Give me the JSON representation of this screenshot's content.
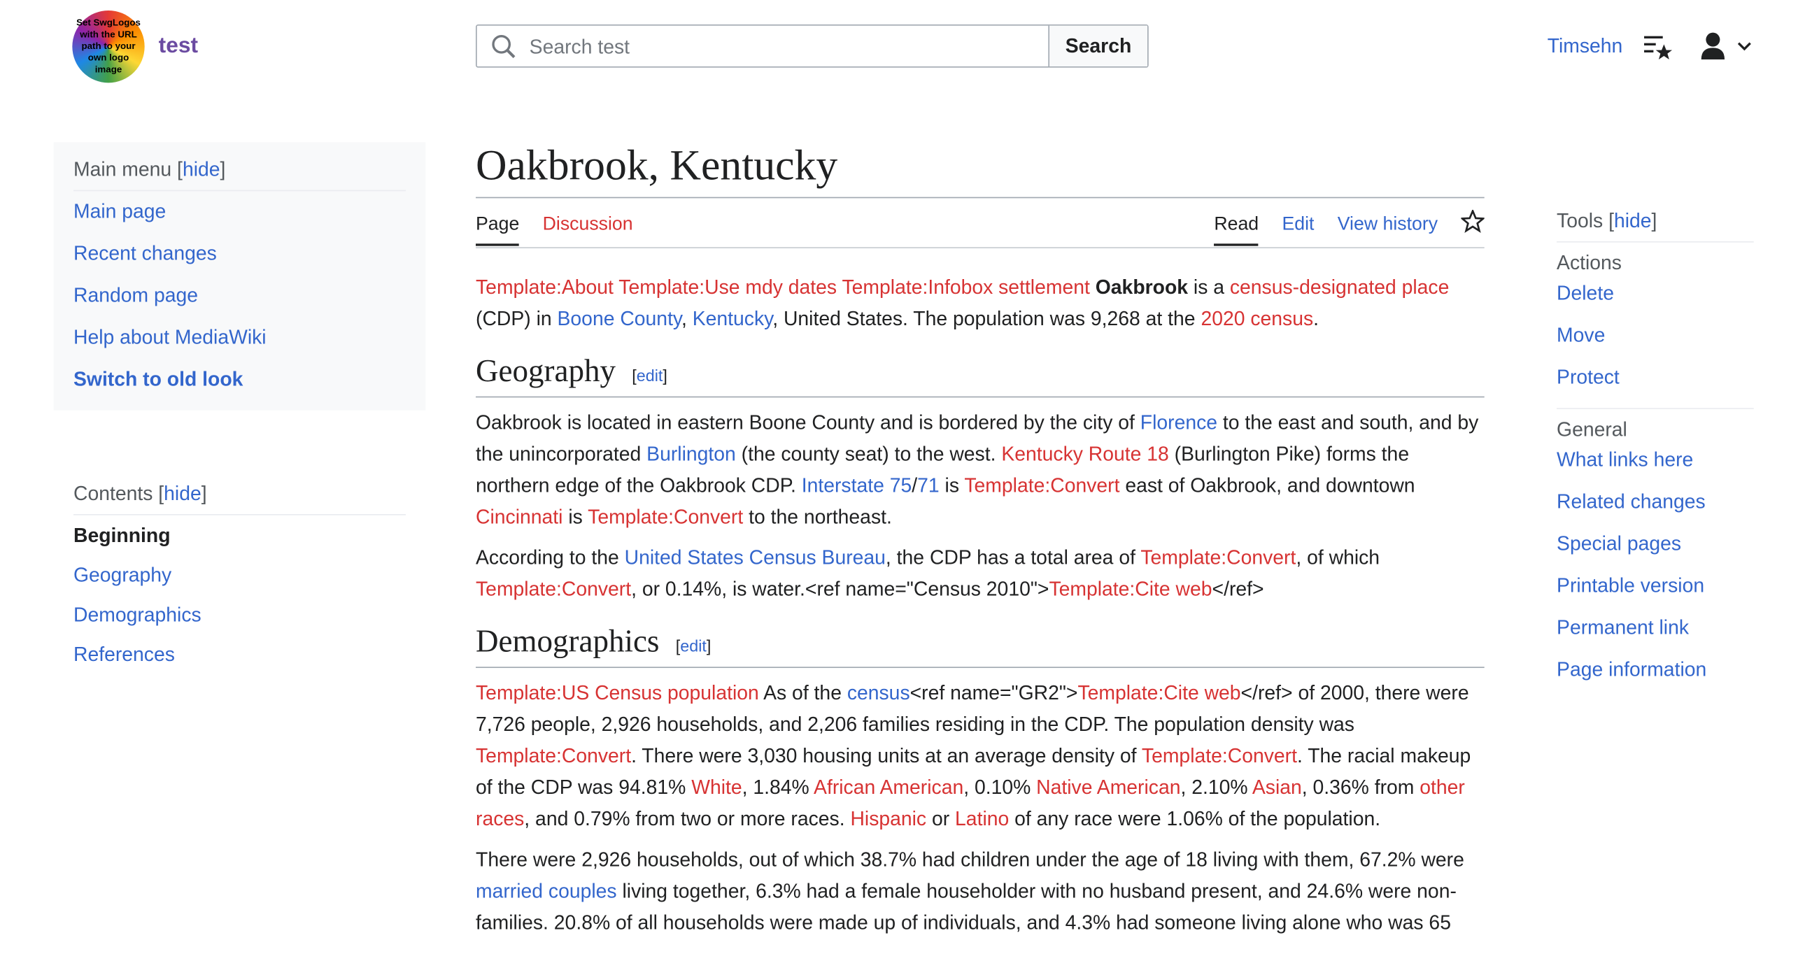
{
  "header": {
    "logo_text": "Set SwgLogos with the URL path to your own logo image",
    "site_name": "test",
    "search_placeholder": "Search test",
    "search_button": "Search",
    "user": "Timsehn"
  },
  "main_menu": {
    "heading": [
      "Main menu ",
      "[",
      {
        "t": "hide",
        "k": "blue"
      },
      "]"
    ],
    "items": [
      {
        "t": "Main page",
        "k": "blue"
      },
      {
        "t": "Recent changes",
        "k": "blue"
      },
      {
        "t": "Random page",
        "k": "blue"
      },
      {
        "t": "Help about MediaWiki",
        "k": "blue"
      },
      {
        "t": "Switch to old look",
        "k": "blue-bold"
      }
    ]
  },
  "contents": {
    "heading": [
      "Contents ",
      "[",
      {
        "t": "hide",
        "k": "blue"
      },
      "]"
    ],
    "items": [
      {
        "t": "Beginning",
        "k": "bold"
      },
      {
        "t": "Geography",
        "k": "blue"
      },
      {
        "t": "Demographics",
        "k": "blue"
      },
      {
        "t": "References",
        "k": "blue"
      }
    ]
  },
  "article": {
    "title": "Oakbrook, Kentucky",
    "tabs_left": [
      {
        "t": "Page",
        "k": "selected"
      },
      {
        "t": "Discussion",
        "k": "red"
      }
    ],
    "tabs_right": [
      {
        "t": "Read",
        "k": "selected"
      },
      {
        "t": "Edit",
        "k": "blue"
      },
      {
        "t": "View history",
        "k": "blue"
      }
    ],
    "blocks": [
      {
        "p": [
          {
            "t": "Template:About",
            "k": "red"
          },
          " ",
          {
            "t": "Template:Use mdy dates",
            "k": "red"
          },
          " ",
          {
            "t": "Template:Infobox settlement",
            "k": "red"
          },
          " ",
          {
            "t": "Oakbrook",
            "k": "bold"
          },
          " is a ",
          {
            "t": "census-designated place",
            "k": "red"
          },
          " (CDP) in ",
          {
            "t": "Boone County",
            "k": "blue"
          },
          ", ",
          {
            "t": "Kentucky",
            "k": "blue"
          },
          ", United States. The population was 9,268 at the ",
          {
            "t": "2020 census",
            "k": "red"
          },
          "."
        ]
      },
      {
        "h": "Geography",
        "edit": [
          "[",
          {
            "t": "edit",
            "k": "blue"
          },
          "]"
        ]
      },
      {
        "p": [
          "Oakbrook is located in eastern Boone County and is bordered by the city of ",
          {
            "t": "Florence",
            "k": "blue"
          },
          " to the east and south, and by the unincorporated ",
          {
            "t": "Burlington",
            "k": "blue"
          },
          " (the county seat) to the west. ",
          {
            "t": "Kentucky Route 18",
            "k": "red"
          },
          " (Burlington Pike) forms the northern edge of the Oakbrook CDP. ",
          {
            "t": "Interstate 75",
            "k": "blue"
          },
          "/",
          {
            "t": "71",
            "k": "blue"
          },
          " is ",
          {
            "t": "Template:Convert",
            "k": "red"
          },
          " east of Oakbrook, and downtown ",
          {
            "t": "Cincinnati",
            "k": "red"
          },
          " is ",
          {
            "t": "Template:Convert",
            "k": "red"
          },
          " to the northeast."
        ]
      },
      {
        "p": [
          "According to the ",
          {
            "t": "United States Census Bureau",
            "k": "blue"
          },
          ", the CDP has a total area of ",
          {
            "t": "Template:Convert",
            "k": "red"
          },
          ", of which ",
          {
            "t": "Template:Convert",
            "k": "red"
          },
          ", or 0.14%, is water.<ref name=\"Census 2010\">",
          {
            "t": "Template:Cite web",
            "k": "red"
          },
          "</ref>"
        ]
      },
      {
        "h": "Demographics",
        "edit": [
          "[",
          {
            "t": "edit",
            "k": "blue"
          },
          "]"
        ]
      },
      {
        "p": [
          {
            "t": "Template:US Census population",
            "k": "red"
          },
          " As of the ",
          {
            "t": "census",
            "k": "blue"
          },
          "<ref name=\"GR2\">",
          {
            "t": "Template:Cite web",
            "k": "red"
          },
          "</ref> of 2000, there were 7,726 people, 2,926 households, and 2,206 families residing in the CDP. The population density was ",
          {
            "t": "Template:Convert",
            "k": "red"
          },
          ". There were 3,030 housing units at an average density of ",
          {
            "t": "Template:Convert",
            "k": "red"
          },
          ". The racial makeup of the CDP was 94.81% ",
          {
            "t": "White",
            "k": "red"
          },
          ", 1.84% ",
          {
            "t": "African American",
            "k": "red"
          },
          ", 0.10% ",
          {
            "t": "Native American",
            "k": "red"
          },
          ", 2.10% ",
          {
            "t": "Asian",
            "k": "red"
          },
          ", 0.36% from ",
          {
            "t": "other races",
            "k": "red"
          },
          ", and 0.79% from two or more races. ",
          {
            "t": "Hispanic",
            "k": "red"
          },
          " or ",
          {
            "t": "Latino",
            "k": "red"
          },
          " of any race were 1.06% of the population."
        ]
      },
      {
        "p": [
          "There were 2,926 households, out of which 38.7% had children under the age of 18 living with them, 67.2% were ",
          {
            "t": "married couples",
            "k": "blue"
          },
          " living together, 6.3% had a female householder with no husband present, and 24.6% were non-families. 20.8% of all households were made up of individuals, and 4.3% had someone living alone who was 65"
        ]
      }
    ]
  },
  "tools": {
    "heading": [
      "Tools ",
      "[",
      {
        "t": "hide",
        "k": "blue"
      },
      "]"
    ],
    "sections": [
      {
        "title": "Actions",
        "items": [
          {
            "t": "Delete",
            "k": "blue"
          },
          {
            "t": "Move",
            "k": "blue"
          },
          {
            "t": "Protect",
            "k": "blue"
          }
        ]
      },
      {
        "title": "General",
        "items": [
          {
            "t": "What links here",
            "k": "blue"
          },
          {
            "t": "Related changes",
            "k": "blue"
          },
          {
            "t": "Special pages",
            "k": "blue"
          },
          {
            "t": "Printable version",
            "k": "blue"
          },
          {
            "t": "Permanent link",
            "k": "blue"
          },
          {
            "t": "Page information",
            "k": "blue"
          }
        ]
      }
    ]
  }
}
